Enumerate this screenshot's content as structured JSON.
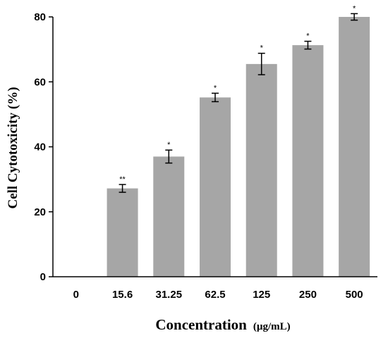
{
  "chart_data": {
    "type": "bar",
    "title": "",
    "xlabel": "Concentration",
    "xlabel_unit": "(µg/mL)",
    "ylabel": "Cell Cytotoxicity (%)",
    "categories": [
      "0",
      "15.6",
      "31.25",
      "62.5",
      "125",
      "250",
      "500"
    ],
    "values": [
      0,
      27.2,
      37.0,
      55.2,
      65.5,
      71.3,
      80.0
    ],
    "errors": [
      0,
      1.2,
      2.0,
      1.3,
      3.3,
      1.2,
      1.0
    ],
    "significance": [
      "",
      "**",
      "*",
      "*",
      "*",
      "*",
      "*"
    ],
    "ylim": [
      0,
      80
    ],
    "yticks": [
      0,
      20,
      40,
      60,
      80
    ],
    "grid": false,
    "bar_color": "#a6a6a6",
    "axis_color": "#000000"
  }
}
